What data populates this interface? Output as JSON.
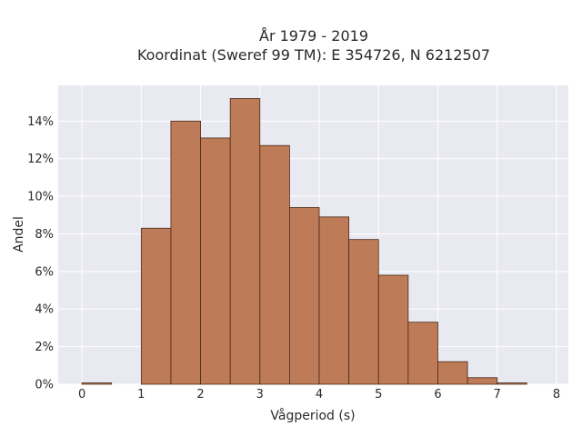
{
  "chart_data": {
    "type": "bar",
    "title_line1": "År 1979 - 2019",
    "title_line2": "Koordinat (Sweref 99 TM): E 354726, N 6212507",
    "xlabel": "Vågperiod (s)",
    "ylabel": "Andel",
    "bin_width": 0.5,
    "bins": [
      {
        "x0": 0.0,
        "value": 0.07
      },
      {
        "x0": 0.5,
        "value": 0.0
      },
      {
        "x0": 1.0,
        "value": 8.3
      },
      {
        "x0": 1.5,
        "value": 14.0
      },
      {
        "x0": 2.0,
        "value": 13.1
      },
      {
        "x0": 2.5,
        "value": 15.2
      },
      {
        "x0": 3.0,
        "value": 12.7
      },
      {
        "x0": 3.5,
        "value": 9.4
      },
      {
        "x0": 4.0,
        "value": 8.9
      },
      {
        "x0": 4.5,
        "value": 7.7
      },
      {
        "x0": 5.0,
        "value": 5.8
      },
      {
        "x0": 5.5,
        "value": 3.3
      },
      {
        "x0": 6.0,
        "value": 1.2
      },
      {
        "x0": 6.5,
        "value": 0.35
      },
      {
        "x0": 7.0,
        "value": 0.07
      }
    ],
    "xlim": [
      -0.4,
      8.2
    ],
    "ylim": [
      0,
      15.9
    ],
    "x_ticks": [
      0,
      1,
      2,
      3,
      4,
      5,
      6,
      7,
      8
    ],
    "x_tick_labels": [
      "0",
      "1",
      "2",
      "3",
      "4",
      "5",
      "6",
      "7",
      "8"
    ],
    "y_ticks": [
      0,
      2,
      4,
      6,
      8,
      10,
      12,
      14
    ],
    "y_tick_labels": [
      "0%",
      "2%",
      "4%",
      "6%",
      "8%",
      "10%",
      "12%",
      "14%"
    ],
    "grid": true,
    "colors": {
      "bar_fill": "#bd7b57",
      "bar_stroke": "#4a2a1a",
      "plot_bg": "#e9e9f2",
      "grid": "#ffffff"
    }
  }
}
